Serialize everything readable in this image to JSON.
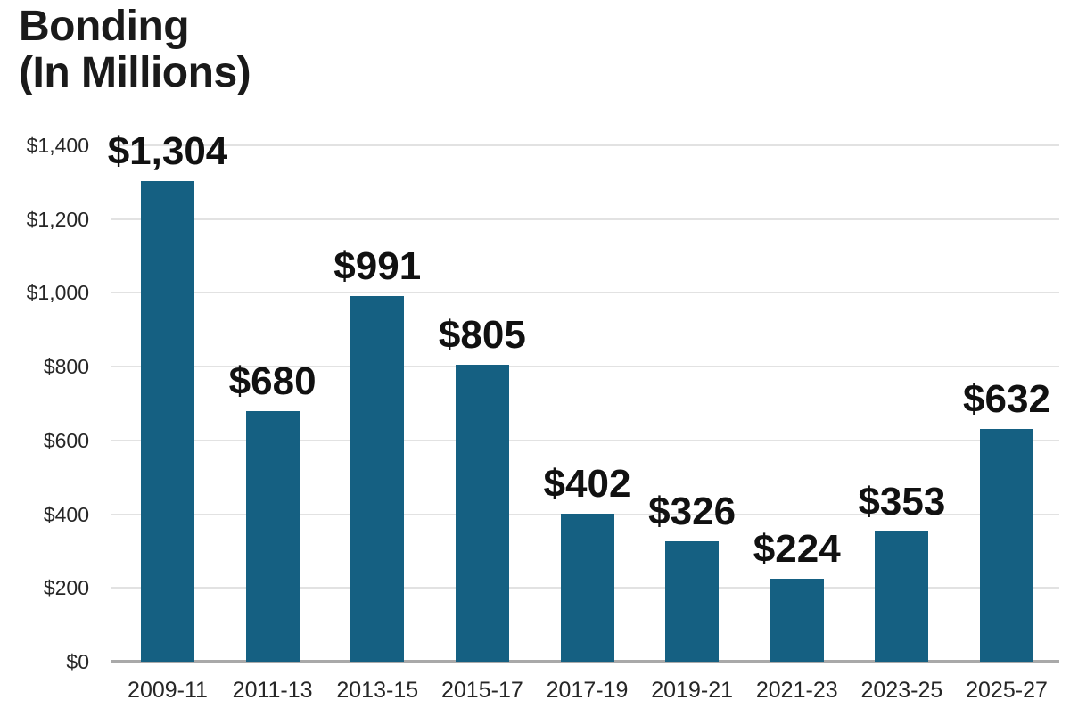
{
  "header": {
    "line1": "Bonding",
    "line2": "(In Millions)"
  },
  "chart_data": {
    "type": "bar",
    "title": "Bonding (In Millions)",
    "categories": [
      "2009-11",
      "2011-13",
      "2013-15",
      "2015-17",
      "2017-19",
      "2019-21",
      "2021-23",
      "2023-25",
      "2025-27"
    ],
    "values": [
      1304,
      680,
      991,
      805,
      402,
      326,
      224,
      353,
      632
    ],
    "value_labels": [
      "$1,304",
      "$680",
      "$991",
      "$805",
      "$402",
      "$326",
      "$224",
      "$353",
      "$632"
    ],
    "xlabel": "",
    "ylabel": "",
    "ylim": [
      0,
      1400
    ],
    "ytick_values": [
      0,
      200,
      400,
      600,
      800,
      1000,
      1200,
      1400
    ],
    "ytick_labels": [
      "$0",
      "$200",
      "$400",
      "$600",
      "$800",
      "$1,000",
      "$1,200",
      "$1,400"
    ],
    "grid": true,
    "legend": "none",
    "colors": {
      "bar": "#156082",
      "gridline": "#e2e2e2",
      "axis_line": "#a9a9a9",
      "title_text": "#1a1a1a",
      "value_label_text": "#111111",
      "tick_label_text": "#262626",
      "background": "#ffffff"
    }
  }
}
